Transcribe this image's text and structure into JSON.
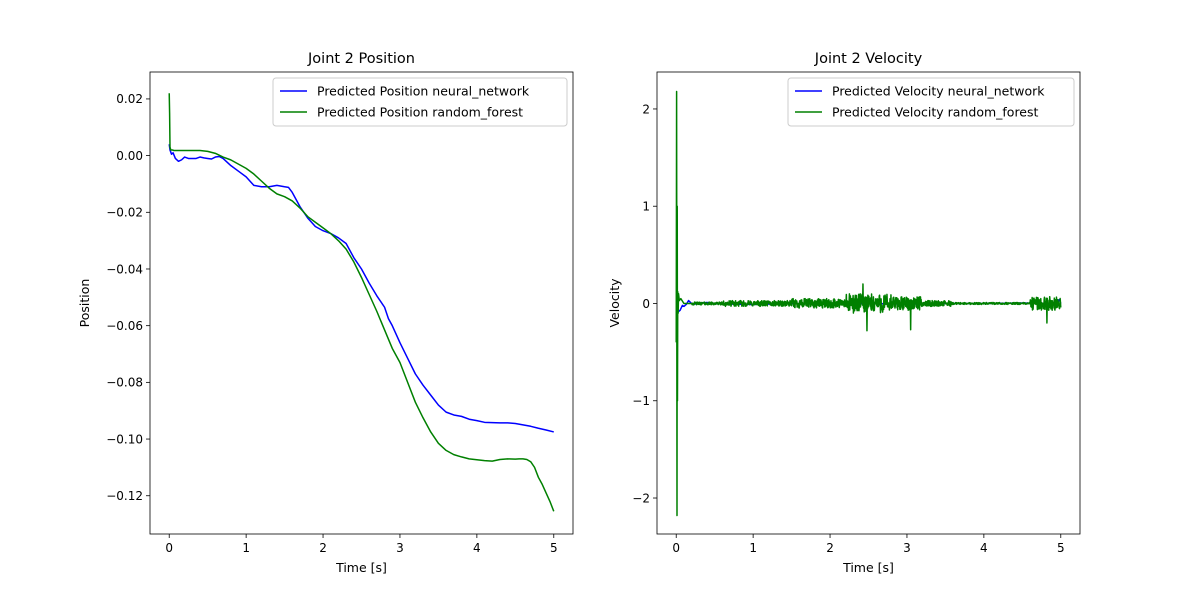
{
  "chart_data": [
    {
      "type": "line",
      "title": "Joint 2 Position",
      "xlabel": "Time [s]",
      "ylabel": "Position",
      "xlim": [
        -0.25,
        5.25
      ],
      "ylim": [
        -0.1335,
        0.0295
      ],
      "xticks": [
        0,
        1,
        2,
        3,
        4,
        5
      ],
      "xtick_labels": [
        "0",
        "1",
        "2",
        "3",
        "4",
        "5"
      ],
      "yticks": [
        0.02,
        0.0,
        -0.02,
        -0.04,
        -0.06,
        -0.08,
        -0.1,
        -0.12
      ],
      "ytick_labels": [
        "0.02",
        "0.00",
        "−0.02",
        "−0.04",
        "−0.06",
        "−0.08",
        "−0.10",
        "−0.12"
      ],
      "grid": false,
      "legend": "top-right",
      "series": [
        {
          "name": "Predicted Position neural_network",
          "color": "#0000ff",
          "x": [
            0,
            0.01,
            0.03,
            0.05,
            0.08,
            0.12,
            0.16,
            0.2,
            0.25,
            0.3,
            0.35,
            0.4,
            0.45,
            0.5,
            0.55,
            0.6,
            0.65,
            0.7,
            0.8,
            0.9,
            1.0,
            1.05,
            1.1,
            1.2,
            1.3,
            1.4,
            1.5,
            1.55,
            1.6,
            1.7,
            1.8,
            1.9,
            2.0,
            2.1,
            2.2,
            2.3,
            2.4,
            2.5,
            2.6,
            2.7,
            2.8,
            2.85,
            2.9,
            3.0,
            3.1,
            3.2,
            3.3,
            3.4,
            3.5,
            3.6,
            3.7,
            3.8,
            3.9,
            4.0,
            4.1,
            4.2,
            4.3,
            4.4,
            4.5,
            4.6,
            4.7,
            4.8,
            4.9,
            5.0
          ],
          "y": [
            0.004,
            0.002,
            0.0005,
            0.001,
            -0.001,
            -0.002,
            -0.0015,
            -0.0005,
            -0.001,
            -0.001,
            -0.001,
            -0.0005,
            -0.0008,
            -0.001,
            -0.0012,
            -0.0005,
            -0.0003,
            -0.001,
            -0.0035,
            -0.0055,
            -0.0075,
            -0.009,
            -0.0105,
            -0.011,
            -0.011,
            -0.0105,
            -0.011,
            -0.0112,
            -0.013,
            -0.018,
            -0.022,
            -0.025,
            -0.0265,
            -0.0275,
            -0.029,
            -0.031,
            -0.036,
            -0.04,
            -0.045,
            -0.0495,
            -0.0535,
            -0.0575,
            -0.06,
            -0.066,
            -0.0715,
            -0.077,
            -0.081,
            -0.0845,
            -0.088,
            -0.0905,
            -0.0915,
            -0.092,
            -0.093,
            -0.0935,
            -0.0941,
            -0.0942,
            -0.0943,
            -0.0943,
            -0.0945,
            -0.095,
            -0.0955,
            -0.0962,
            -0.0968,
            -0.0975
          ]
        },
        {
          "name": "Predicted Position random_forest",
          "color": "#008000",
          "x": [
            0,
            0.005,
            0.01,
            0.02,
            0.04,
            0.06,
            0.1,
            0.2,
            0.3,
            0.4,
            0.5,
            0.6,
            0.7,
            0.8,
            0.9,
            1.0,
            1.1,
            1.2,
            1.3,
            1.4,
            1.5,
            1.6,
            1.7,
            1.8,
            1.9,
            2.0,
            2.1,
            2.2,
            2.3,
            2.4,
            2.5,
            2.6,
            2.7,
            2.8,
            2.9,
            3.0,
            3.1,
            3.2,
            3.3,
            3.4,
            3.5,
            3.6,
            3.7,
            3.8,
            3.9,
            4.0,
            4.1,
            4.2,
            4.3,
            4.4,
            4.5,
            4.55,
            4.6,
            4.65,
            4.7,
            4.75,
            4.8,
            4.85,
            4.9,
            4.95,
            5.0
          ],
          "y": [
            0.022,
            0.015,
            0.003,
            0.002,
            0.002,
            0.0018,
            0.0018,
            0.0018,
            0.0018,
            0.0018,
            0.0015,
            0.0008,
            -0.0005,
            -0.0015,
            -0.003,
            -0.0045,
            -0.0065,
            -0.009,
            -0.0115,
            -0.0135,
            -0.0145,
            -0.016,
            -0.0185,
            -0.0215,
            -0.0235,
            -0.0255,
            -0.0275,
            -0.03,
            -0.033,
            -0.0375,
            -0.043,
            -0.049,
            -0.055,
            -0.0615,
            -0.068,
            -0.073,
            -0.08,
            -0.087,
            -0.0925,
            -0.0975,
            -0.1015,
            -0.104,
            -0.1055,
            -0.1063,
            -0.107,
            -0.1073,
            -0.1076,
            -0.1078,
            -0.1072,
            -0.107,
            -0.1071,
            -0.107,
            -0.107,
            -0.1072,
            -0.108,
            -0.11,
            -0.1135,
            -0.116,
            -0.119,
            -0.122,
            -0.1255
          ]
        }
      ]
    },
    {
      "type": "line",
      "title": "Joint 2 Velocity",
      "xlabel": "Time [s]",
      "ylabel": "Velocity",
      "xlim": [
        -0.25,
        5.25
      ],
      "ylim": [
        -2.37,
        2.38
      ],
      "xticks": [
        0,
        1,
        2,
        3,
        4,
        5
      ],
      "xtick_labels": [
        "0",
        "1",
        "2",
        "3",
        "4",
        "5"
      ],
      "yticks": [
        2,
        1,
        0,
        -1,
        -2
      ],
      "ytick_labels": [
        "2",
        "1",
        "0",
        "−1",
        "−2"
      ],
      "grid": false,
      "legend": "top-right",
      "series": [
        {
          "name": "Predicted Velocity neural_network",
          "color": "#0000ff",
          "x": [
            0,
            0.02,
            0.05,
            0.08,
            0.1,
            0.13,
            0.16,
            0.2,
            0.25,
            0.3,
            0.4,
            0.5,
            0.7,
            1.0,
            1.5,
            2.0,
            2.5,
            3.0,
            3.5,
            4.0,
            4.5,
            4.8,
            4.95,
            4.98,
            5.0
          ],
          "y": [
            -0.08,
            -0.09,
            -0.07,
            -0.02,
            -0.03,
            -0.01,
            0.03,
            0.0,
            -0.005,
            0.005,
            0.01,
            0.0,
            -0.005,
            -0.01,
            0.0,
            -0.005,
            0.0,
            -0.005,
            0.0,
            0.0,
            0.005,
            0.0,
            0.0,
            0.04,
            0.0
          ]
        },
        {
          "name": "Predicted Velocity random_forest",
          "color": "#008000",
          "x": [
            0.0,
            0.005,
            0.01,
            0.013,
            0.016,
            0.02,
            0.025,
            0.03,
            0.04,
            0.06,
            0.1,
            0.2
          ],
          "y": [
            -0.4,
            2.18,
            -2.18,
            1.0,
            -1.0,
            0.12,
            -0.1,
            0.1,
            0.03,
            0.05,
            0.0,
            0.0
          ],
          "noise": {
            "x_start": 0.2,
            "x_end": 5.0,
            "segments": [
              {
                "x": [
                  0.2,
                  0.6
                ],
                "amp": 0.015
              },
              {
                "x": [
                  0.6,
                  1.5
                ],
                "amp": 0.03
              },
              {
                "x": [
                  1.5,
                  2.2
                ],
                "amp": 0.05
              },
              {
                "x": [
                  2.2,
                  2.8
                ],
                "amp": 0.1
              },
              {
                "x": [
                  2.8,
                  3.2
                ],
                "amp": 0.07
              },
              {
                "x": [
                  3.2,
                  3.6
                ],
                "amp": 0.03
              },
              {
                "x": [
                  3.6,
                  4.6
                ],
                "amp": 0.01
              },
              {
                "x": [
                  4.6,
                  5.0
                ],
                "amp": 0.07
              }
            ],
            "spikes": [
              {
                "x": 2.43,
                "y": 0.2
              },
              {
                "x": 2.48,
                "y": -0.28
              },
              {
                "x": 3.05,
                "y": -0.27
              },
              {
                "x": 4.82,
                "y": -0.2
              }
            ]
          }
        }
      ]
    }
  ]
}
